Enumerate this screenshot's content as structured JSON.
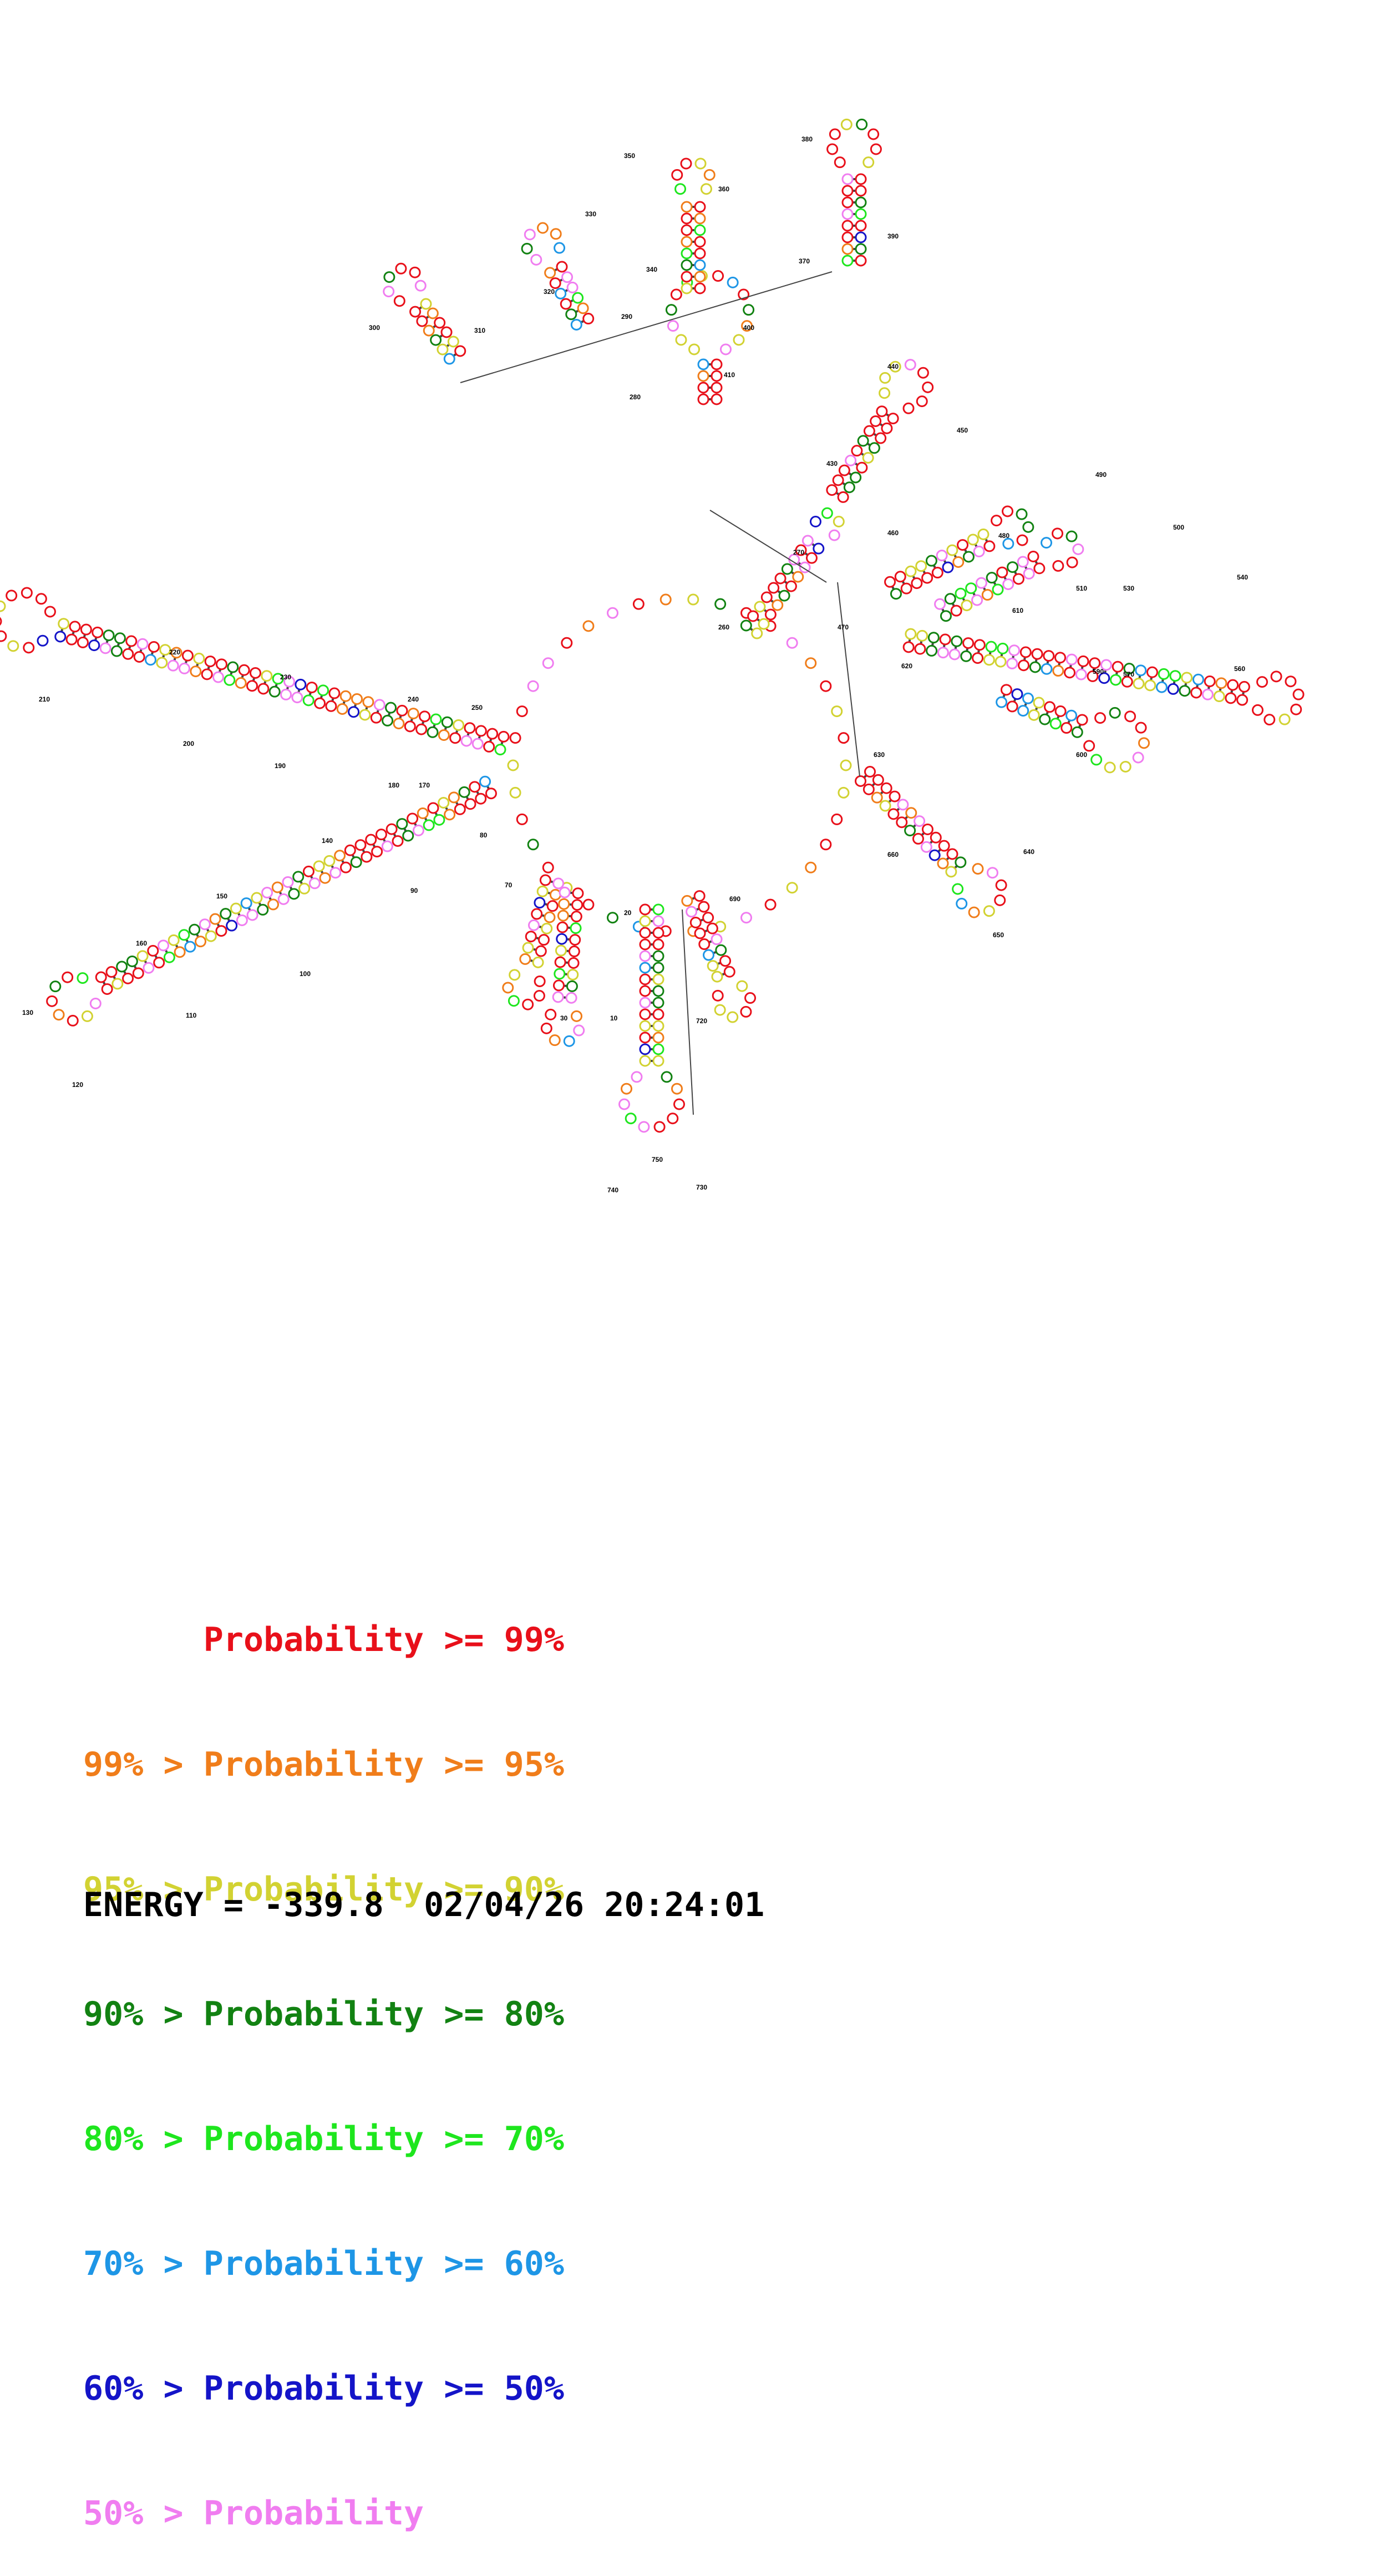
{
  "structure": {
    "tick_labels": [
      "10",
      "20",
      "30",
      "70",
      "80",
      "90",
      "100",
      "110",
      "120",
      "130",
      "140",
      "150",
      "160",
      "170",
      "180",
      "190",
      "200",
      "210",
      "220",
      "230",
      "240",
      "250",
      "260",
      "270",
      "280",
      "290",
      "300",
      "310",
      "320",
      "330",
      "340",
      "350",
      "360",
      "370",
      "380",
      "390",
      "400",
      "410",
      "430",
      "440",
      "450",
      "460",
      "470",
      "480",
      "490",
      "500",
      "510",
      "530",
      "540",
      "560",
      "570",
      "590",
      "600",
      "610",
      "620",
      "630",
      "640",
      "650",
      "660",
      "690",
      "720",
      "730",
      "740",
      "750"
    ]
  },
  "legend": {
    "rows": [
      {
        "prefix": "",
        "label": "Probability >= 99%",
        "color": "#e8101a"
      },
      {
        "prefix": "99% > ",
        "label": "Probability >= 95%",
        "color": "#f07d1a"
      },
      {
        "prefix": "95% > ",
        "label": "Probability >= 90%",
        "color": "#d2d232"
      },
      {
        "prefix": "90% > ",
        "label": "Probability >= 80%",
        "color": "#128212"
      },
      {
        "prefix": "80% > ",
        "label": "Probability >= 70%",
        "color": "#1ee61e"
      },
      {
        "prefix": "70% > ",
        "label": "Probability >= 60%",
        "color": "#1e96e6"
      },
      {
        "prefix": "60% > ",
        "label": "Probability >= 50%",
        "color": "#1414c8"
      },
      {
        "prefix": "50% > ",
        "label": "Probability",
        "color": "#f07df0"
      }
    ]
  },
  "footer": {
    "energy_text": "ENERGY = -339.8",
    "timestamp": "02/04/26 20:24:01"
  }
}
